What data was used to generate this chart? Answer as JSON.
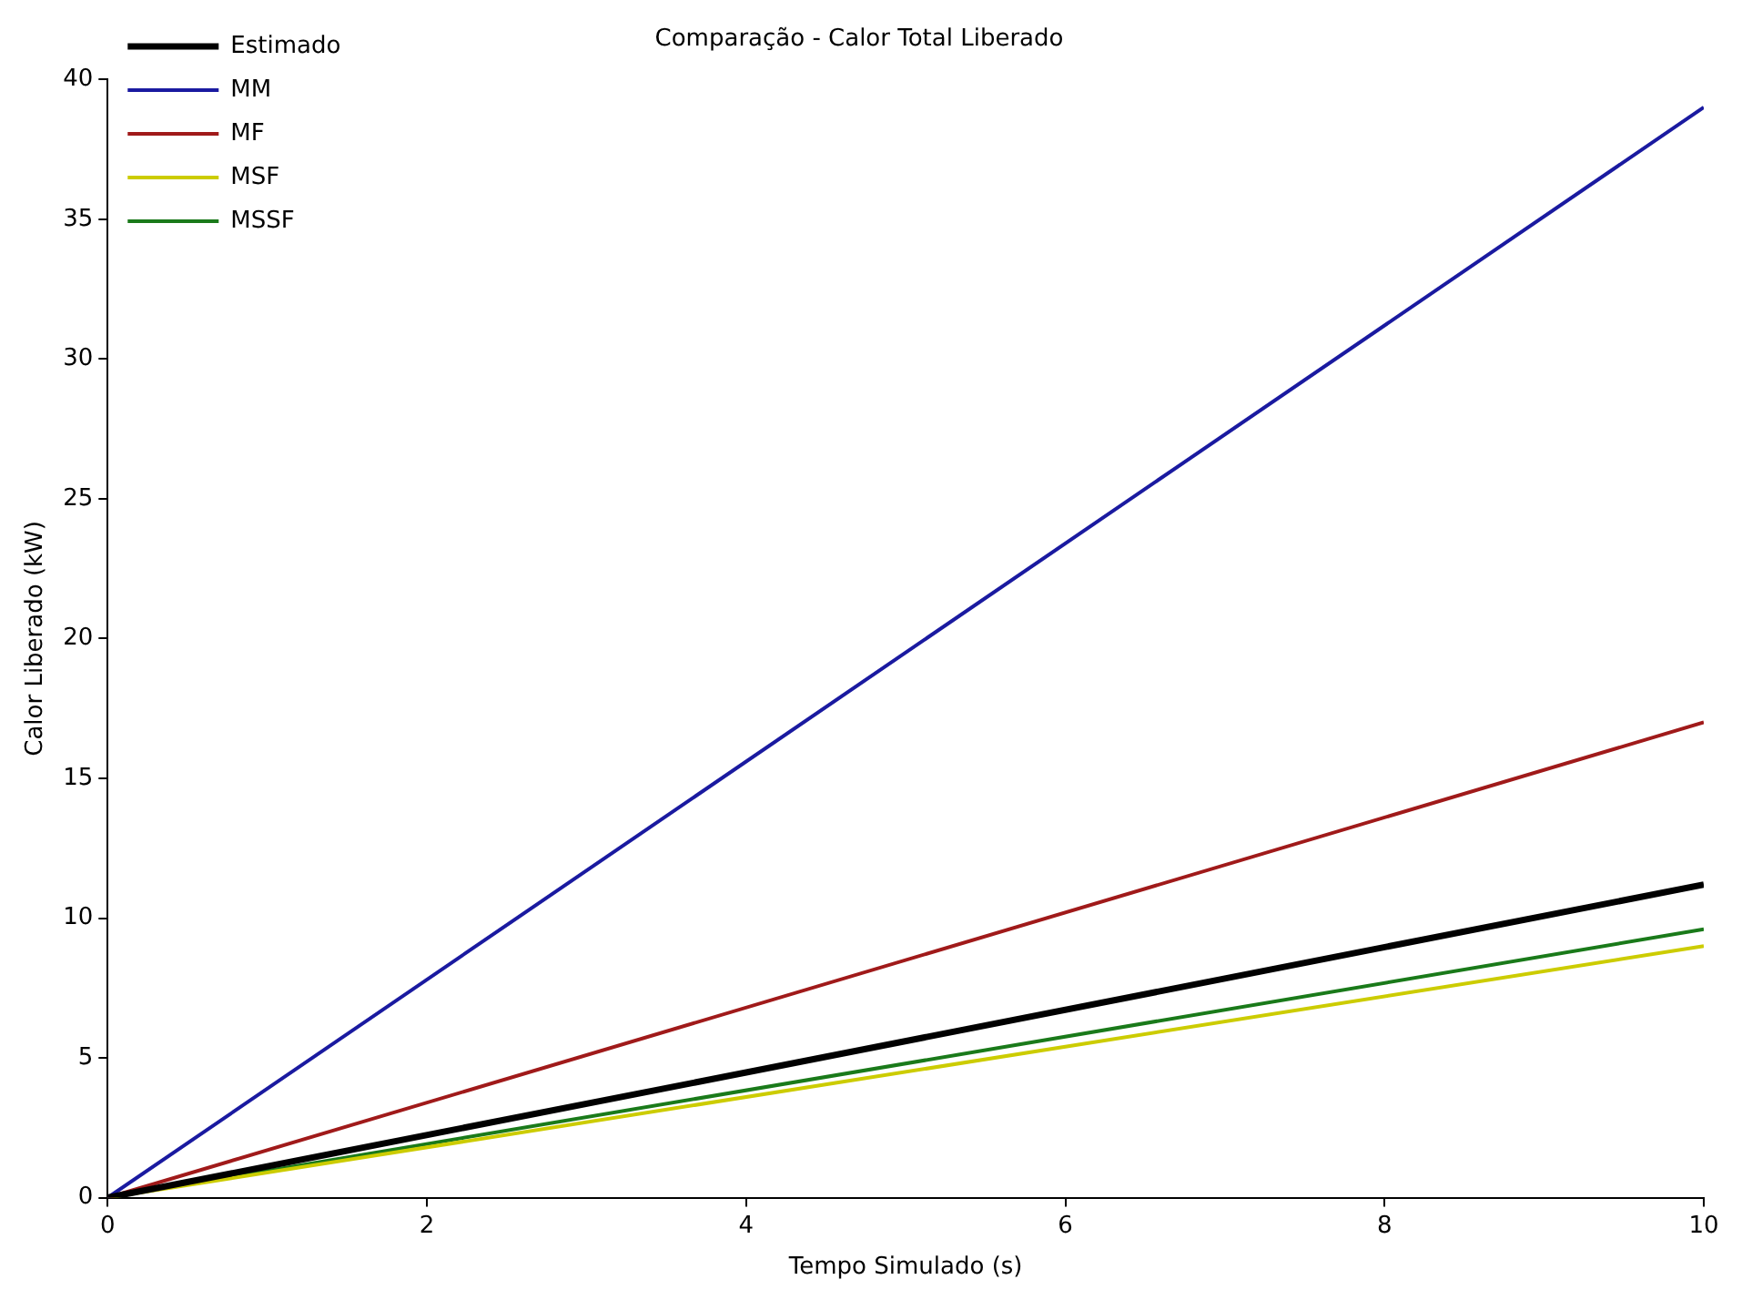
{
  "chart_data": {
    "type": "line",
    "title": "Comparação - Calor Total Liberado",
    "xlabel": "Tempo Simulado (s)",
    "ylabel": "Calor Liberado (kW)",
    "x": [
      0,
      10
    ],
    "series": [
      {
        "name": "Estimado",
        "color": "#000000",
        "values": [
          0,
          11.2
        ]
      },
      {
        "name": "MM",
        "color": "#1a1aa0",
        "values": [
          0,
          39
        ]
      },
      {
        "name": "MF",
        "color": "#a01a1a",
        "values": [
          0,
          17
        ]
      },
      {
        "name": "MSF",
        "color": "#cccc00",
        "values": [
          0,
          9.0
        ]
      },
      {
        "name": "MSSF",
        "color": "#1a7a1a",
        "values": [
          0,
          9.6
        ]
      }
    ],
    "xlim": [
      0,
      10
    ],
    "xticks": [
      0,
      2,
      4,
      6,
      8,
      10
    ],
    "ylim": [
      0,
      40
    ],
    "yticks": [
      0,
      5,
      10,
      15,
      20,
      25,
      30,
      35,
      40
    ],
    "grid": false,
    "legend": "top left",
    "marker": "none",
    "line_style": "solid"
  }
}
